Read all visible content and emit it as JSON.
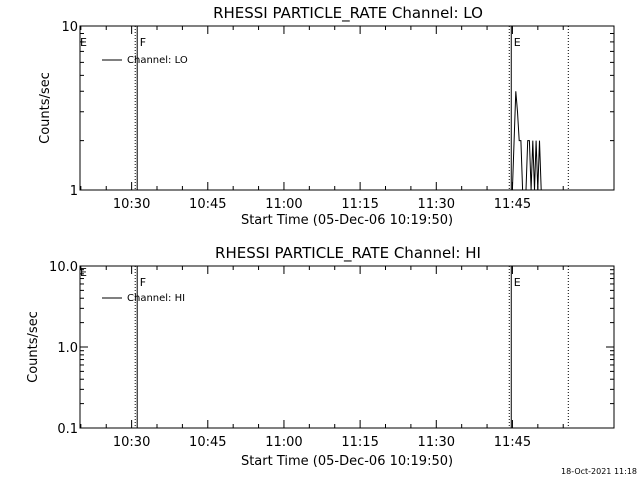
{
  "footer": {
    "timestamp": "18-Oct-2021 11:18"
  },
  "chart_data": [
    {
      "type": "line",
      "title": "RHESSI PARTICLE_RATE Channel: LO",
      "xlabel": "Start Time (05-Dec-06 10:19:50)",
      "ylabel": "Counts/sec",
      "yscale": "log",
      "x_unit": "time (HH:MM)",
      "xlim": [
        "10:19:50",
        "12:05:00"
      ],
      "ylim": [
        1,
        10
      ],
      "x_ticks": [
        "10:30",
        "10:45",
        "11:00",
        "11:15",
        "11:30",
        "11:45"
      ],
      "y_ticks": [
        "1",
        "10"
      ],
      "legend": {
        "position": "top-left",
        "entries": [
          "Channel: LO"
        ]
      },
      "markers": [
        {
          "time": "10:31:00",
          "label": "F",
          "style": "solid-dotted"
        },
        {
          "time": "11:44:40",
          "label": "E",
          "style": "solid-dotted"
        },
        {
          "time": "11:56:00",
          "label": "",
          "style": "dotted"
        }
      ],
      "series": [
        {
          "name": "Channel: LO",
          "x": [
            "11:45:00",
            "11:45:20",
            "11:45:40",
            "11:46:00",
            "11:46:20",
            "11:46:40",
            "11:47:00",
            "11:47:20",
            "11:47:40",
            "11:48:00",
            "11:48:20",
            "11:48:40",
            "11:49:00",
            "11:49:20",
            "11:49:40",
            "11:50:00",
            "11:50:20",
            "11:50:40",
            "11:51:00"
          ],
          "y": [
            1,
            2,
            4,
            3,
            2,
            2,
            1,
            1,
            1,
            2,
            2,
            1,
            2,
            1,
            2,
            1,
            2,
            1,
            1
          ]
        }
      ]
    },
    {
      "type": "line",
      "title": "RHESSI PARTICLE_RATE Channel: HI",
      "xlabel": "Start Time (05-Dec-06 10:19:50)",
      "ylabel": "Counts/sec",
      "yscale": "log",
      "x_unit": "time (HH:MM)",
      "xlim": [
        "10:19:50",
        "12:05:00"
      ],
      "ylim": [
        0.1,
        10
      ],
      "x_ticks": [
        "10:30",
        "10:45",
        "11:00",
        "11:15",
        "11:30",
        "11:45"
      ],
      "y_ticks": [
        "0.1",
        "1.0",
        "10.0"
      ],
      "legend": {
        "position": "top-left",
        "entries": [
          "Channel: HI"
        ]
      },
      "markers": [
        {
          "time": "10:31:00",
          "label": "F",
          "style": "solid-dotted"
        },
        {
          "time": "11:44:40",
          "label": "E",
          "style": "solid-dotted"
        },
        {
          "time": "11:56:00",
          "label": "",
          "style": "dotted"
        }
      ],
      "series": [
        {
          "name": "Channel: HI",
          "x": [],
          "y": []
        }
      ]
    }
  ],
  "edge_flags": [
    "E",
    "E"
  ]
}
